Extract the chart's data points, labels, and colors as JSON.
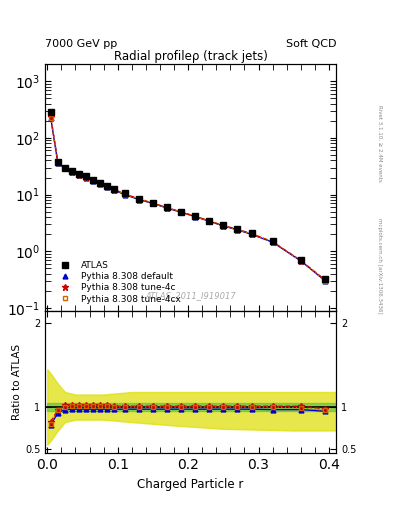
{
  "title_main": "Radial profileρ (track jets)",
  "header_left": "7000 GeV pp",
  "header_right": "Soft QCD",
  "watermark": "ATLAS_2011_I919017",
  "right_label_top": "Rivet 3.1.10, ≥ 2.4M events",
  "right_label_bot": "mcplots.cern.ch [arXiv:1306.3436]",
  "xlabel": "Charged Particle r",
  "ylabel_ratio": "Ratio to ATLAS",
  "x_data": [
    0.005,
    0.015,
    0.025,
    0.035,
    0.045,
    0.055,
    0.065,
    0.075,
    0.085,
    0.095,
    0.11,
    0.13,
    0.15,
    0.17,
    0.19,
    0.21,
    0.23,
    0.25,
    0.27,
    0.29,
    0.32,
    0.36,
    0.395
  ],
  "y_atlas": [
    280,
    38,
    30,
    26,
    23,
    21,
    18,
    16,
    14,
    12.5,
    10.5,
    8.5,
    7.2,
    6.0,
    5.0,
    4.2,
    3.5,
    2.9,
    2.5,
    2.1,
    1.5,
    0.7,
    0.32
  ],
  "y_pythia_default": [
    220,
    36,
    29,
    25,
    22,
    20,
    17.5,
    15.5,
    13.5,
    12.0,
    10.0,
    8.2,
    7.0,
    5.8,
    4.9,
    4.1,
    3.4,
    2.8,
    2.4,
    2.0,
    1.45,
    0.68,
    0.3
  ],
  "y_tune4c": [
    230,
    37,
    29.5,
    25.5,
    22.5,
    20.5,
    18,
    16,
    14,
    12.3,
    10.3,
    8.4,
    7.1,
    5.9,
    4.95,
    4.15,
    3.45,
    2.85,
    2.45,
    2.05,
    1.48,
    0.69,
    0.31
  ],
  "y_tune4cx": [
    225,
    36.5,
    29.2,
    25.2,
    22.2,
    20.2,
    17.8,
    15.8,
    13.8,
    12.2,
    10.2,
    8.3,
    7.05,
    5.85,
    4.92,
    4.12,
    3.42,
    2.82,
    2.42,
    2.02,
    1.46,
    0.685,
    0.305
  ],
  "ratio_default": [
    0.79,
    0.93,
    0.97,
    0.975,
    0.975,
    0.975,
    0.975,
    0.975,
    0.975,
    0.975,
    0.975,
    0.975,
    0.975,
    0.975,
    0.975,
    0.975,
    0.975,
    0.975,
    0.975,
    0.975,
    0.97,
    0.97,
    0.95
  ],
  "ratio_tune4c": [
    0.82,
    0.97,
    1.02,
    1.02,
    1.02,
    1.02,
    1.02,
    1.02,
    1.02,
    1.01,
    1.01,
    1.01,
    1.01,
    1.01,
    1.01,
    1.01,
    1.01,
    1.01,
    1.01,
    1.01,
    1.01,
    1.01,
    0.98
  ],
  "ratio_tune4cx": [
    0.8,
    0.96,
    1.0,
    1.01,
    1.01,
    1.01,
    1.01,
    1.01,
    1.01,
    1.0,
    1.0,
    1.0,
    1.0,
    1.0,
    1.0,
    1.0,
    1.0,
    1.0,
    1.0,
    1.0,
    1.0,
    0.99,
    0.96
  ],
  "green_band_x": [
    0.0,
    0.005,
    0.015,
    0.025,
    0.04,
    0.41
  ],
  "green_band_y1": [
    0.95,
    0.95,
    0.95,
    0.95,
    0.95,
    0.95
  ],
  "green_band_y2": [
    1.05,
    1.05,
    1.05,
    1.05,
    1.05,
    1.05
  ],
  "yellow_band_x": [
    0.0,
    0.005,
    0.015,
    0.025,
    0.04,
    0.08,
    0.12,
    0.18,
    0.25,
    0.35,
    0.41
  ],
  "yellow_band_y1": [
    0.55,
    0.6,
    0.72,
    0.82,
    0.85,
    0.85,
    0.82,
    0.78,
    0.74,
    0.72,
    0.72
  ],
  "yellow_band_y2": [
    1.45,
    1.4,
    1.28,
    1.18,
    1.15,
    1.15,
    1.18,
    1.18,
    1.18,
    1.18,
    1.18
  ],
  "color_atlas": "#000000",
  "color_default": "#0000cc",
  "color_tune4c": "#cc0000",
  "color_tune4cx": "#cc6600",
  "color_green": "#44bb44",
  "color_yellow": "#dddd00",
  "ylim_main": [
    0.09,
    2000
  ],
  "ylim_ratio": [
    0.45,
    2.15
  ],
  "xlim": [
    -0.003,
    0.41
  ]
}
